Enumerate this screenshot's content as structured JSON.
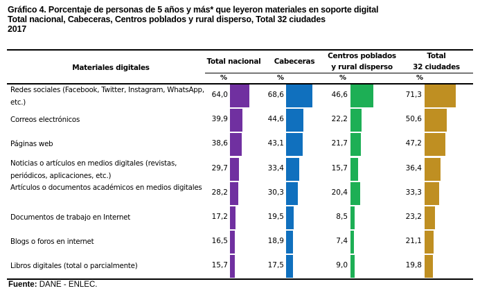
{
  "title": {
    "line1": "Gráfico 4. Porcentaje de personas de 5 años y más* que leyeron materiales en soporte digital",
    "line2": "Total nacional, Cabeceras, Centros poblados y rural disperso, Total 32 ciudades",
    "line3": "2017"
  },
  "table": {
    "row_header": "Materiales digitales",
    "columns": [
      {
        "line1": "Total nacional",
        "line2": "",
        "unit": "%",
        "color": "#7030A0"
      },
      {
        "line1": "Cabeceras",
        "line2": "",
        "unit": "%",
        "color": "#1070BE"
      },
      {
        "line1": "Centros poblados",
        "line2": "y rural disperso",
        "unit": "%",
        "color": "#1DAF55"
      },
      {
        "line1": "Total",
        "line2": "32 ciudades",
        "unit": "%",
        "color": "#BF8F22"
      }
    ]
  },
  "chart_data": {
    "type": "table",
    "title": "Gráfico 4. Porcentaje de personas de 5 años y más* que leyeron materiales en soporte digital",
    "subtitle": "Total nacional, Cabeceras, Centros poblados y rural disperso, Total 32 ciudades",
    "year": "2017",
    "unit": "%",
    "categories": [
      "Redes sociales (Facebook, Twitter, Instagram, WhatsApp, etc.)",
      "Correos electrónicos",
      "Páginas web",
      "Noticias o artículos en medios digitales (revistas, periódicos, aplicaciones, etc.)",
      " Artículos o documentos académicos en medios digitales",
      "Documentos de trabajo en Internet",
      "Blogs o foros en internet",
      "Libros digitales (total o parcialmente)"
    ],
    "series": [
      {
        "name": "Total nacional",
        "values": [
          64.0,
          39.9,
          38.6,
          29.7,
          28.2,
          17.2,
          16.5,
          15.7
        ],
        "labels": [
          "64,0",
          "39,9",
          "38,6",
          "29,7",
          "28,2",
          "17,2",
          "16,5",
          "15,7"
        ]
      },
      {
        "name": "Cabeceras",
        "values": [
          68.6,
          44.6,
          43.1,
          33.4,
          30.3,
          19.5,
          18.9,
          17.5
        ],
        "labels": [
          "68,6",
          "44,6",
          "43,1",
          "33,4",
          "30,3",
          "19,5",
          "18,9",
          "17,5"
        ]
      },
      {
        "name": "Centros poblados y rural disperso",
        "values": [
          46.6,
          22.2,
          21.7,
          15.7,
          20.4,
          8.5,
          7.4,
          9.0
        ],
        "labels": [
          "46,6",
          "22,2",
          "21,7",
          "15,7",
          "20,4",
          "8,5",
          "7,4",
          "9,0"
        ]
      },
      {
        "name": "Total 32 ciudades",
        "values": [
          71.3,
          50.6,
          47.2,
          36.4,
          33.3,
          23.2,
          21.1,
          19.8
        ],
        "labels": [
          "71,3",
          "50,6",
          "47,2",
          "36,4",
          "33,3",
          "23,2",
          "21,1",
          "19,8"
        ]
      }
    ]
  },
  "source": {
    "label": "Fuente:",
    "text": " DANE - ENLEC."
  }
}
